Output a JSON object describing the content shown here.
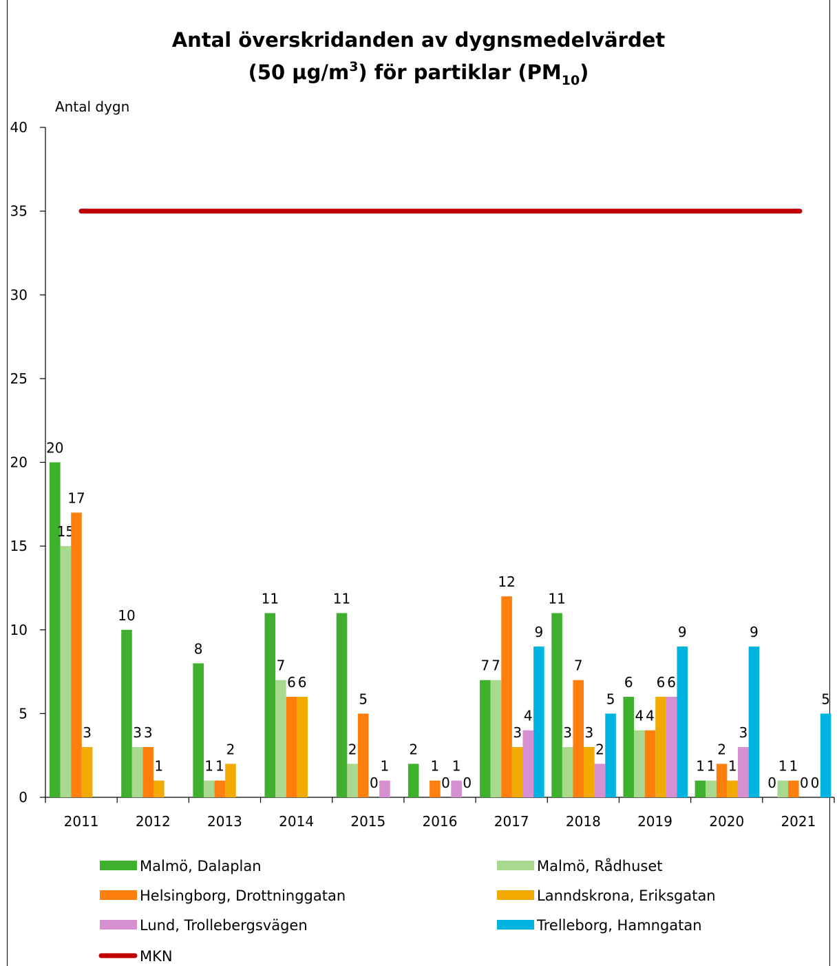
{
  "chart_data": {
    "type": "bar",
    "title_line1": "Antal överskridanden av dygnsmedelvärdet",
    "title_line2_prefix": "(50 µg/m",
    "title_line2_sup": "3",
    "title_line2_mid": ") för partiklar (PM",
    "title_line2_sub": "10",
    "title_line2_suffix": ")",
    "ylabel": "Antal dygn",
    "xlabel": "",
    "ylim": [
      0,
      40
    ],
    "yticks": [
      "0",
      "5",
      "10",
      "15",
      "20",
      "25",
      "30",
      "35",
      "40"
    ],
    "ytick_values": [
      0,
      5,
      10,
      15,
      20,
      25,
      30,
      35,
      40
    ],
    "categories": [
      "2011",
      "2012",
      "2013",
      "2014",
      "2015",
      "2016",
      "2017",
      "2018",
      "2019",
      "2020",
      "2021"
    ],
    "series": [
      {
        "name": "Malmö, Dalaplan",
        "color": "#3faf2e",
        "values": [
          20,
          10,
          8,
          11,
          11,
          2,
          7,
          11,
          6,
          1,
          0
        ]
      },
      {
        "name": "Malmö, Rådhuset",
        "color": "#a9d88f",
        "values": [
          15,
          3,
          1,
          7,
          2,
          null,
          7,
          3,
          4,
          1,
          1
        ]
      },
      {
        "name": "Helsingborg, Drottninggatan",
        "color": "#ff7f0e",
        "values": [
          17,
          3,
          1,
          6,
          5,
          1,
          12,
          7,
          4,
          2,
          1
        ]
      },
      {
        "name": "Lanndskrona, Eriksgatan",
        "color": "#f2a900",
        "values": [
          3,
          1,
          2,
          6,
          0,
          0,
          3,
          3,
          6,
          1,
          0
        ]
      },
      {
        "name": "Lund, Trollebergsvägen",
        "color": "#d68fd0",
        "values": [
          null,
          null,
          null,
          null,
          1,
          1,
          4,
          2,
          6,
          3,
          0
        ]
      },
      {
        "name": "Trelleborg, Hamngatan",
        "color": "#00b4e1",
        "values": [
          null,
          null,
          null,
          null,
          null,
          0,
          9,
          5,
          9,
          9,
          5
        ]
      }
    ],
    "reference_line": {
      "name": "MKN",
      "value": 35,
      "color": "#c00000"
    },
    "grid": false,
    "legend_placement": "bottom"
  }
}
